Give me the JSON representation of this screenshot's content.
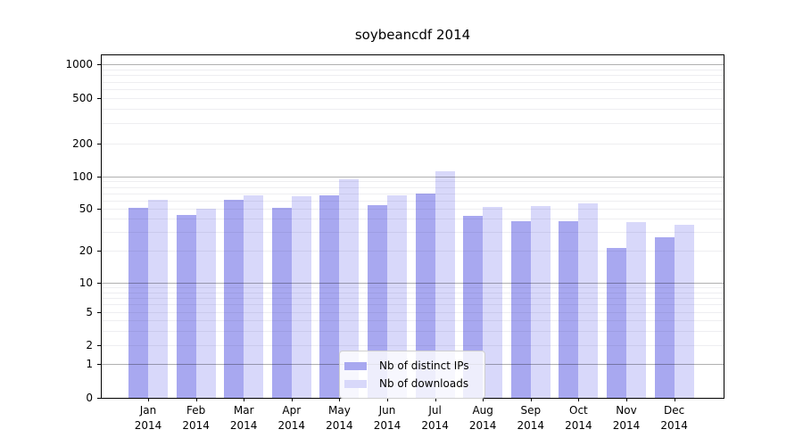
{
  "chart_data": {
    "type": "bar",
    "title": "soybeancdf 2014",
    "categories": [
      "Jan 2014",
      "Feb 2014",
      "Mar 2014",
      "Apr 2014",
      "May 2014",
      "Jun 2014",
      "Jul 2014",
      "Aug 2014",
      "Sep 2014",
      "Oct 2014",
      "Nov 2014",
      "Dec 2014"
    ],
    "x_tick_months": [
      "Jan",
      "Feb",
      "Mar",
      "Apr",
      "May",
      "Jun",
      "Jul",
      "Aug",
      "Sep",
      "Oct",
      "Nov",
      "Dec"
    ],
    "x_tick_year": "2014",
    "series": [
      {
        "name": "Nb of distinct IPs",
        "color": "#a8a8f0",
        "values": [
          51,
          44,
          61,
          51,
          67,
          54,
          70,
          43,
          38,
          38,
          21,
          27
        ]
      },
      {
        "name": "Nb of downloads",
        "color": "#d8d8fa",
        "values": [
          61,
          50,
          67,
          66,
          95,
          67,
          112,
          52,
          53,
          56,
          37,
          35
        ]
      }
    ],
    "xlabel": "",
    "ylabel": "",
    "yscale": "log-with-zero-floor",
    "ylim": [
      0,
      1200
    ],
    "y_ticks": [
      1000,
      500,
      200,
      100,
      50,
      20,
      10,
      5,
      2,
      1,
      0
    ],
    "grid": {
      "major": [
        1,
        10,
        100,
        1000
      ],
      "minor": [
        2,
        3,
        4,
        5,
        6,
        7,
        8,
        9,
        20,
        30,
        40,
        50,
        60,
        70,
        80,
        90,
        200,
        300,
        400,
        500,
        600,
        700,
        800,
        900
      ]
    },
    "y_anchor_fracs": [
      [
        0,
        1.0
      ],
      [
        1,
        0.901
      ],
      [
        2,
        0.846
      ],
      [
        5,
        0.75
      ],
      [
        10,
        0.664
      ],
      [
        20,
        0.57
      ],
      [
        50,
        0.448
      ],
      [
        100,
        0.354
      ],
      [
        200,
        0.258
      ],
      [
        500,
        0.125
      ],
      [
        1000,
        0.026
      ]
    ],
    "legend": {
      "location": "lower center",
      "entries": [
        "Nb of distinct IPs",
        "Nb of downloads"
      ]
    },
    "colors": {
      "background": "#ffffff",
      "bar_distinct_ips": "#a8a8f0",
      "bar_downloads": "#d8d8fa",
      "major_grid": "#b0b0b0",
      "minor_grid": "#e9e9ee",
      "axis": "#000000",
      "text": "#000000"
    }
  }
}
